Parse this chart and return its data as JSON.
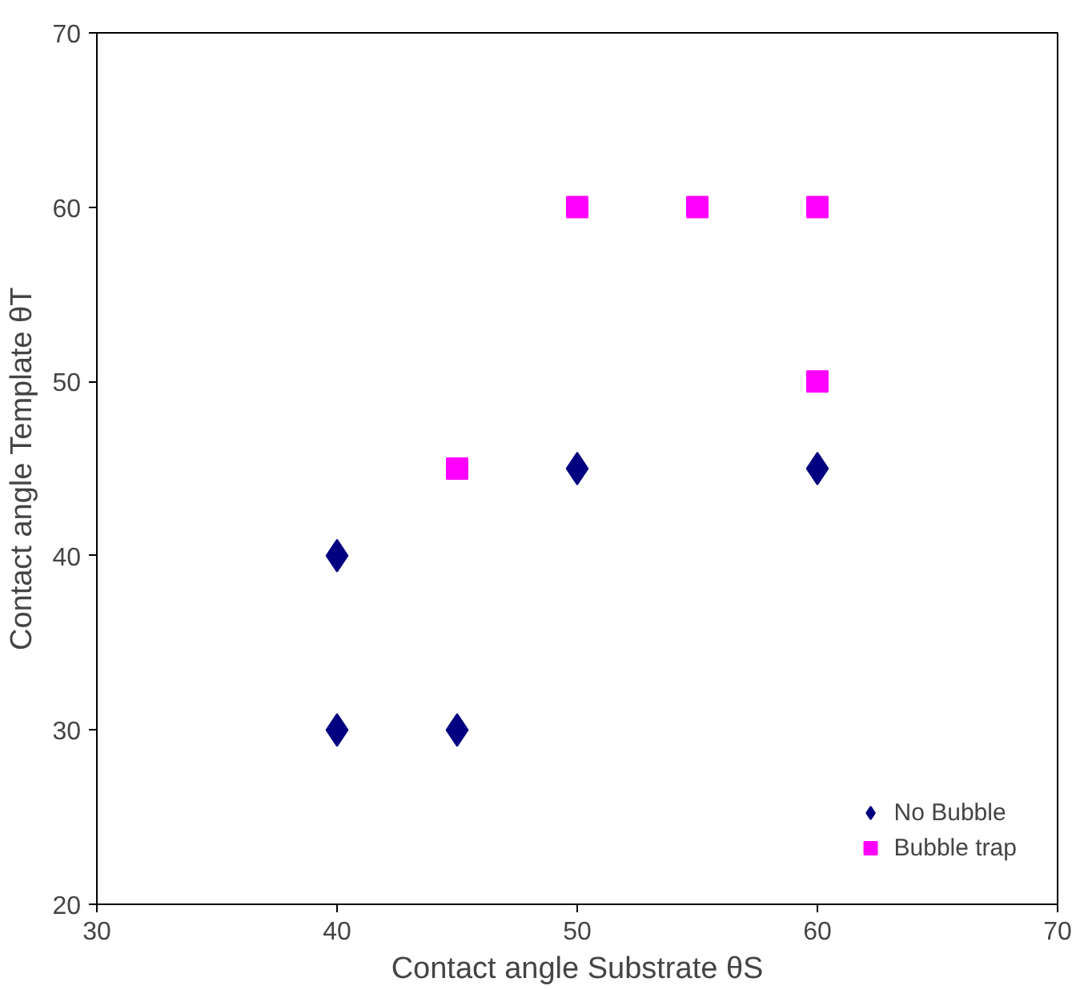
{
  "chart_data": {
    "type": "scatter",
    "xlabel": "Contact angle Substrate θS",
    "ylabel": "Contact angle Template θT",
    "xlim": [
      30,
      70
    ],
    "xticks": [
      30,
      40,
      50,
      60,
      70
    ],
    "ylim": [
      20,
      70
    ],
    "yticks": [
      20,
      30,
      40,
      50,
      60,
      70
    ],
    "grid": false,
    "legend": "bottom right",
    "series": [
      {
        "name": "No Bubble",
        "color": "#000080",
        "marker": "diamond",
        "x": [
          40,
          40,
          45,
          50,
          60
        ],
        "values": [
          30,
          40,
          30,
          45,
          45
        ]
      },
      {
        "name": "Bubble trap",
        "color": "#ff00ff",
        "marker": "square",
        "x": [
          45,
          50,
          55,
          60,
          60
        ],
        "values": [
          45,
          60,
          60,
          60,
          50
        ]
      }
    ]
  }
}
